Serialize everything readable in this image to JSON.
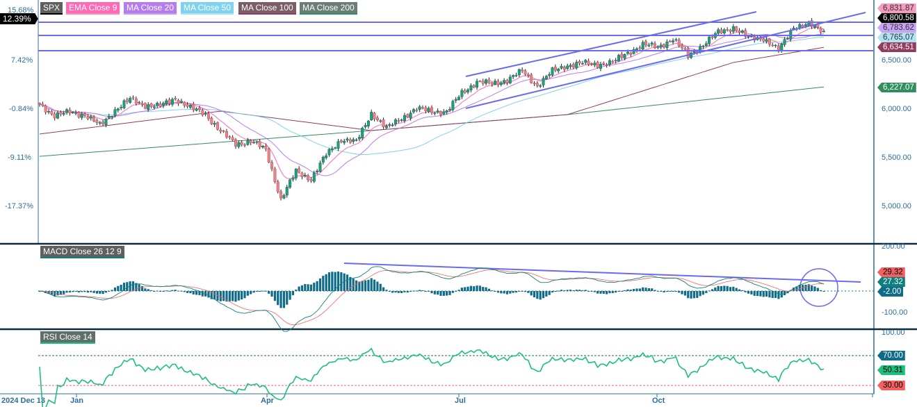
{
  "symbol": "SPX",
  "legend": [
    {
      "label": "EMA  Close 9",
      "color": "#ff69b4"
    },
    {
      "label": "MA  Close 20",
      "color": "#b57cf0"
    },
    {
      "label": "MA  Close 50",
      "color": "#7fd3ef"
    },
    {
      "label": "MA  Close 100",
      "color": "#7b5d67"
    },
    {
      "label": "MA  Close 200",
      "color": "#6b7d75"
    }
  ],
  "percent_axis": [
    "15.68%",
    "7.42%",
    "-0.84%",
    "-9.11%",
    "-17.37%"
  ],
  "current_percent": "12.39%",
  "price_axis": [
    "6,500.00",
    "6,000.00",
    "5,500.00",
    "5,000.00"
  ],
  "price_tags": [
    {
      "label": "6,831.87",
      "color": "#f79ac0",
      "text": "#333"
    },
    {
      "label": "6,800.58",
      "color": "#000000",
      "text": "#fff"
    },
    {
      "label": "6,783.62",
      "color": "#c9a4f2",
      "text": "#333"
    },
    {
      "label": "6,765.07",
      "color": "#aee3f3",
      "text": "#333"
    },
    {
      "label": "6,634.51",
      "color": "#933a5e",
      "text": "#fff"
    },
    {
      "label": "6,227.07",
      "color": "#2e8f5c",
      "text": "#fff"
    }
  ],
  "macd": {
    "label": "MACD  Close 26 12 9",
    "axis": [
      "200.00",
      "-100.00"
    ],
    "tags": [
      {
        "label": "29.32",
        "color": "#f26160"
      },
      {
        "label": "27.32",
        "color": "#0d7f7f"
      },
      {
        "label": "-2.00",
        "color": "#0f6b8a"
      }
    ]
  },
  "rsi": {
    "label": "RSI  Close 14",
    "axis": [
      "100.00"
    ],
    "tags": [
      {
        "label": "70.00",
        "color": "#0f6b8a",
        "text": "#fff"
      },
      {
        "label": "50.31",
        "color": "#1dbf7f",
        "text": "#000"
      },
      {
        "label": "30.00",
        "color": "#f26160",
        "text": "#000"
      }
    ]
  },
  "x_axis": [
    "2024 Dec 13",
    "Jan",
    "Apr",
    "Jul",
    "Oct"
  ],
  "colors": {
    "up": "#1f9e78",
    "down": "#e8838b",
    "annotation": "#6a6af0"
  },
  "chart_data": {
    "type": "candlestick",
    "weekly_close_approx": [
      6050,
      5930,
      5970,
      5940,
      5830,
      5990,
      6100,
      6040,
      6030,
      6110,
      6010,
      5950,
      5770,
      5640,
      5670,
      5580,
      5070,
      5360,
      5280,
      5530,
      5690,
      5660,
      5960,
      5800,
      5910,
      6000,
      5980,
      5970,
      6170,
      6280,
      6260,
      6300,
      6390,
      6240,
      6390,
      6450,
      6470,
      6460,
      6480,
      6580,
      6660,
      6640,
      6720,
      6550,
      6660,
      6790,
      6840,
      6730,
      6730,
      6600,
      6850,
      6870,
      6800.58
    ],
    "ma100_anchors": [
      [
        0,
        5743
      ],
      [
        12,
        5978
      ],
      [
        22,
        5779
      ],
      [
        35,
        5943
      ],
      [
        46,
        6479
      ],
      [
        52,
        6634.51
      ]
    ],
    "ma200_anchors": [
      [
        0,
        5514
      ],
      [
        22,
        5779
      ],
      [
        35,
        5943
      ],
      [
        52,
        6227.07
      ]
    ],
    "price_range": [
      4600,
      7000
    ]
  }
}
